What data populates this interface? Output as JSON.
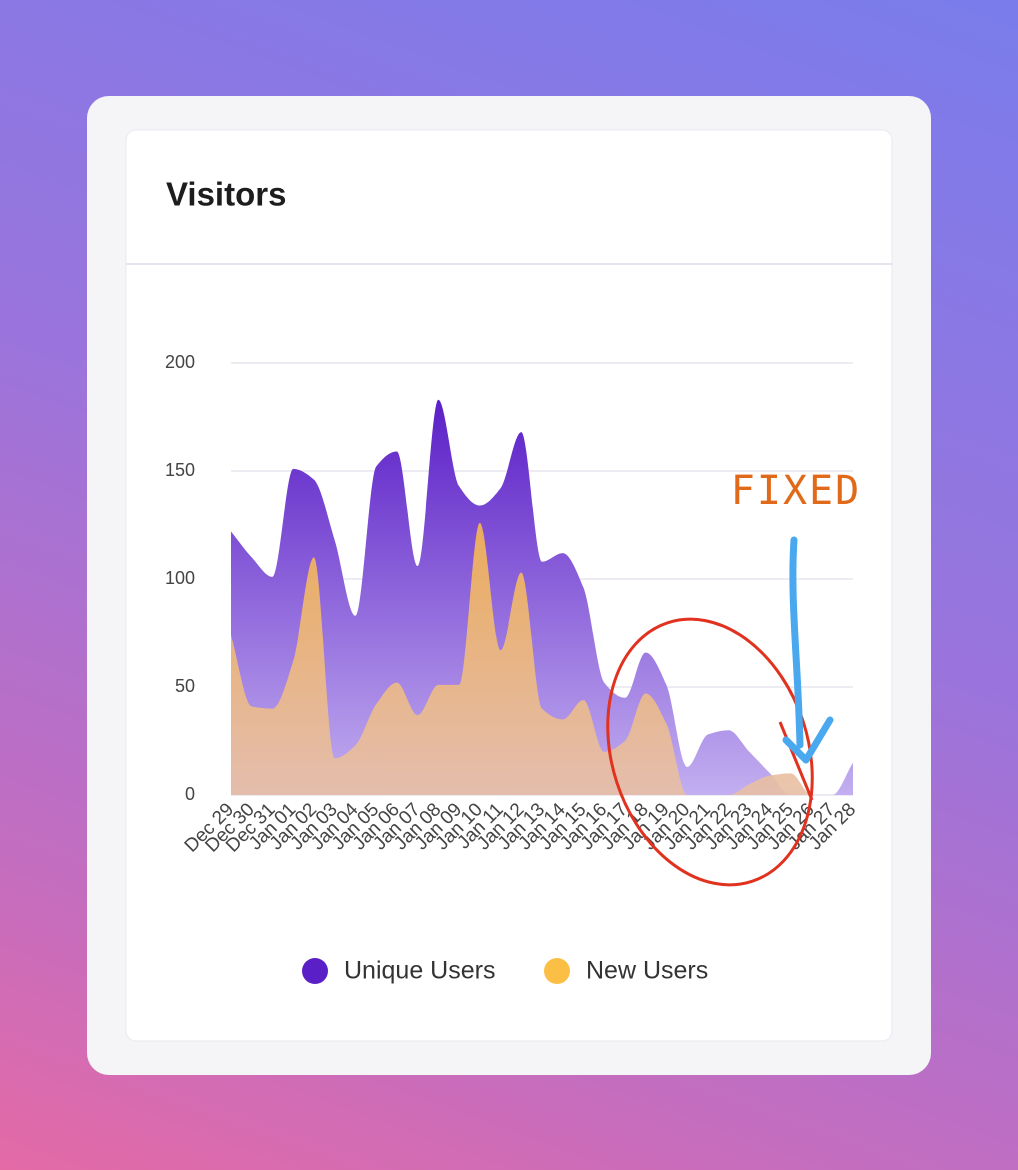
{
  "chart_data": {
    "type": "area",
    "title": "Visitors",
    "categories": [
      "Dec 29",
      "Dec 30",
      "Dec 31",
      "Jan 01",
      "Jan 02",
      "Jan 03",
      "Jan 04",
      "Jan 05",
      "Jan 06",
      "Jan 07",
      "Jan 08",
      "Jan 09",
      "Jan 10",
      "Jan 11",
      "Jan 12",
      "Jan 13",
      "Jan 14",
      "Jan 15",
      "Jan 16",
      "Jan 17",
      "Jan 18",
      "Jan 19",
      "Jan 20",
      "Jan 21",
      "Jan 22",
      "Jan 23",
      "Jan 24",
      "Jan 25",
      "Jan 26",
      "Jan 27",
      "Jan 28"
    ],
    "series": [
      {
        "name": "Unique Users",
        "color": "#5b1fc7",
        "values": [
          122,
          110,
          101,
          151,
          146,
          118,
          83,
          152,
          159,
          106,
          183,
          143,
          134,
          142,
          168,
          108,
          112,
          96,
          52,
          45,
          66,
          51,
          13,
          28,
          30,
          20,
          10,
          0,
          0,
          0,
          15
        ]
      },
      {
        "name": "New Users",
        "color": "#fbbf45",
        "values": [
          74,
          41,
          40,
          62,
          110,
          17,
          23,
          42,
          52,
          37,
          51,
          51,
          126,
          67,
          103,
          40,
          35,
          44,
          20,
          25,
          47,
          33,
          0,
          0,
          0,
          5,
          9,
          10,
          0,
          0,
          0
        ]
      }
    ],
    "ylim": [
      0,
      200
    ],
    "yticks": [
      0,
      50,
      100,
      150,
      200
    ],
    "grid": true,
    "annotations": [
      "FIXED"
    ]
  }
}
